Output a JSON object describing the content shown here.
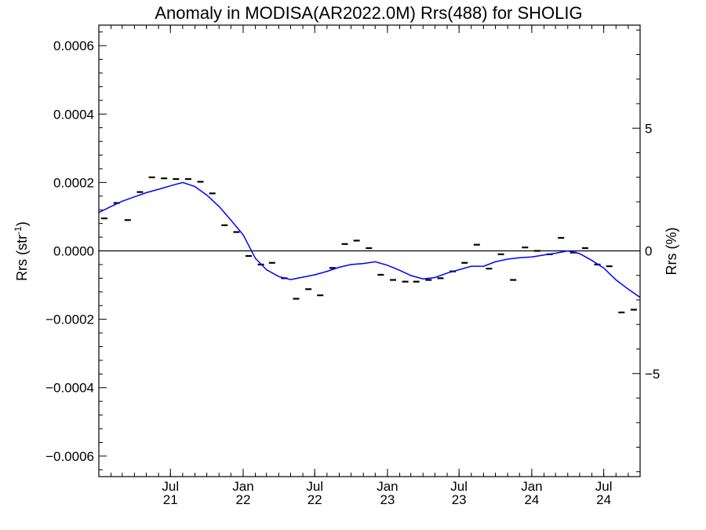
{
  "chart_data": {
    "type": "line",
    "title": "Anomaly in MODISA(AR2022.0M) Rrs(488) for SHOLIG",
    "ylabel_main": "Rrs (str",
    "ylabel_sup": "-1",
    "ylabel_close": ")",
    "ylabel_right": "Rrs (%)",
    "xlim": [
      "2021-01-01",
      "2024-10-01"
    ],
    "ylim": [
      -0.00066,
      0.00066
    ],
    "y_right_lim": [
      -9.2,
      9.2
    ],
    "x_ticks": [
      {
        "date": "2021-07-01",
        "month": "Jul",
        "year": "21"
      },
      {
        "date": "2022-01-01",
        "month": "Jan",
        "year": "22"
      },
      {
        "date": "2022-07-01",
        "month": "Jul",
        "year": "22"
      },
      {
        "date": "2023-01-01",
        "month": "Jan",
        "year": "23"
      },
      {
        "date": "2023-07-01",
        "month": "Jul",
        "year": "23"
      },
      {
        "date": "2024-01-01",
        "month": "Jan",
        "year": "24"
      },
      {
        "date": "2024-07-01",
        "month": "Jul",
        "year": "24"
      }
    ],
    "y_ticks": [
      {
        "value": 0.0006,
        "label": "0.0006"
      },
      {
        "value": 0.0004,
        "label": "0.0004"
      },
      {
        "value": 0.0002,
        "label": "0.0002"
      },
      {
        "value": 0.0,
        "label": "0.0000"
      },
      {
        "value": -0.0002,
        "label": "−0.0002"
      },
      {
        "value": -0.0004,
        "label": "−0.0004"
      },
      {
        "value": -0.0006,
        "label": "−0.0006"
      }
    ],
    "y_right_ticks": [
      {
        "value": 5,
        "label": "5"
      },
      {
        "value": 0,
        "label": "0"
      },
      {
        "value": -5,
        "label": "−5"
      }
    ],
    "zero_line": true,
    "colors": {
      "smoothed": "#0000ff",
      "monthly": "#000000",
      "axes": "#000000"
    },
    "series": [
      {
        "style": "markers",
        "x": [
          "2021-01-15",
          "2021-02-15",
          "2021-03-15",
          "2021-04-15",
          "2021-05-15",
          "2021-06-15",
          "2021-07-15",
          "2021-08-15",
          "2021-09-15",
          "2021-10-15",
          "2021-11-15",
          "2021-12-15",
          "2022-01-15",
          "2022-02-15",
          "2022-03-15",
          "2022-04-15",
          "2022-05-15",
          "2022-06-15",
          "2022-07-15",
          "2022-08-15",
          "2022-09-15",
          "2022-10-15",
          "2022-11-15",
          "2022-12-15",
          "2023-01-15",
          "2023-02-15",
          "2023-03-15",
          "2023-04-15",
          "2023-05-15",
          "2023-06-15",
          "2023-07-15",
          "2023-08-15",
          "2023-09-15",
          "2023-10-15",
          "2023-11-15",
          "2023-12-15",
          "2024-01-15",
          "2024-02-15",
          "2024-03-15",
          "2024-04-15",
          "2024-05-15",
          "2024-06-15",
          "2024-07-15",
          "2024-08-15",
          "2024-09-15"
        ],
        "y": [
          9.5e-05,
          0.00014,
          9e-05,
          0.000172,
          0.000215,
          0.000212,
          0.00021,
          0.00021,
          0.000202,
          0.000168,
          7.5e-05,
          5.5e-05,
          -1.5e-05,
          -4e-05,
          -3.5e-05,
          -8e-05,
          -0.00014,
          -0.000112,
          -0.00013,
          -5e-05,
          2e-05,
          3e-05,
          8e-06,
          -7e-05,
          -8.5e-05,
          -9e-05,
          -9e-05,
          -8.5e-05,
          -8e-05,
          -6e-05,
          -3.5e-05,
          1.8e-05,
          -5.2e-05,
          -1e-05,
          -8.5e-05,
          1e-05,
          0.0,
          -1e-05,
          3.8e-05,
          -5e-06,
          8e-06,
          -4e-05,
          -4.5e-05,
          -0.00018,
          -0.000172
        ]
      },
      {
        "style": "line",
        "x": [
          "2021-01-01",
          "2021-02-01",
          "2021-03-01",
          "2021-04-01",
          "2021-05-01",
          "2021-06-01",
          "2021-07-01",
          "2021-08-01",
          "2021-09-01",
          "2021-10-01",
          "2021-11-01",
          "2021-12-01",
          "2022-01-01",
          "2022-02-01",
          "2022-03-01",
          "2022-04-01",
          "2022-05-01",
          "2022-06-01",
          "2022-07-01",
          "2022-08-01",
          "2022-09-01",
          "2022-10-01",
          "2022-11-01",
          "2022-12-01",
          "2023-01-01",
          "2023-02-01",
          "2023-03-01",
          "2023-04-01",
          "2023-05-01",
          "2023-06-01",
          "2023-07-01",
          "2023-08-01",
          "2023-09-01",
          "2023-10-01",
          "2023-11-01",
          "2023-12-01",
          "2024-01-01",
          "2024-02-01",
          "2024-03-01",
          "2024-04-01",
          "2024-05-01",
          "2024-06-01",
          "2024-07-01",
          "2024-08-01",
          "2024-09-01",
          "2024-10-01"
        ],
        "y": [
          0.000112,
          0.00013,
          0.000145,
          0.000158,
          0.00017,
          0.00018,
          0.00019,
          0.0002,
          0.000188,
          0.000163,
          0.00013,
          9e-05,
          4.7e-05,
          -2.2e-05,
          -5.5e-05,
          -7.5e-05,
          -8.4e-05,
          -7.7e-05,
          -7e-05,
          -6e-05,
          -4.8e-05,
          -4e-05,
          -3.7e-05,
          -3.2e-05,
          -4.2e-05,
          -5.7e-05,
          -7.2e-05,
          -8.2e-05,
          -7.8e-05,
          -6.5e-05,
          -5.5e-05,
          -4.5e-05,
          -4.5e-05,
          -3.2e-05,
          -2.4e-05,
          -2e-05,
          -1.8e-05,
          -1.2e-05,
          -7e-06,
          0.0,
          -8e-06,
          -2.8e-05,
          -5e-05,
          -8.5e-05,
          -0.000112,
          -0.000136
        ]
      }
    ]
  }
}
